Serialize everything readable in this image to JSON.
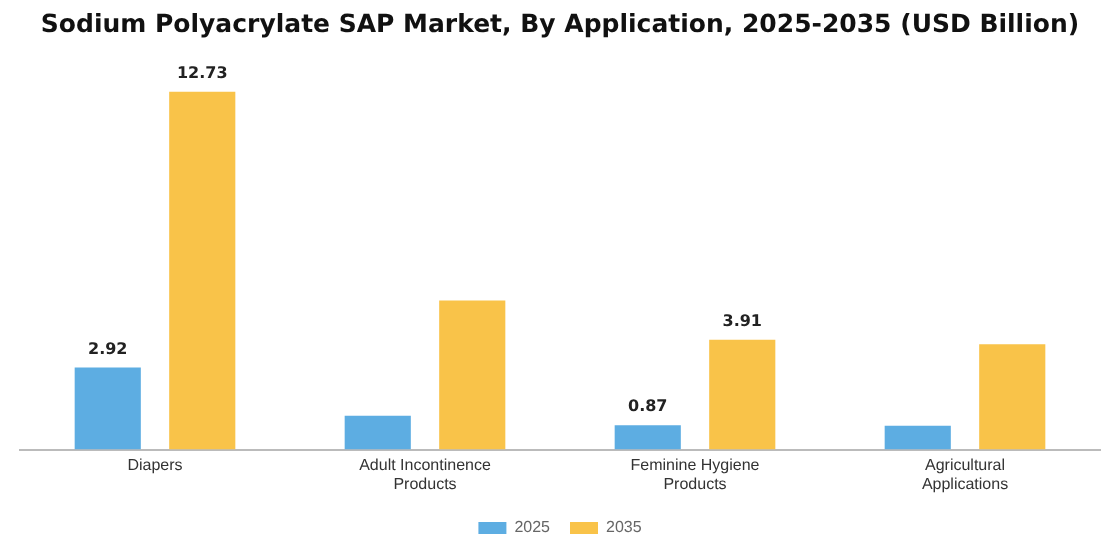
{
  "chart_data": {
    "type": "bar",
    "title": "Sodium Polyacrylate SAP Market, By Application, 2025-2035 (USD Billion)",
    "categories": [
      "Diapers",
      "Adult Incontinence Products",
      "Feminine Hygiene Products",
      "Agricultural Applications"
    ],
    "series": [
      {
        "name": "2025",
        "color": "#5dade2",
        "values": [
          2.92,
          1.2,
          0.87,
          0.85
        ],
        "value_labels": [
          "2.92",
          null,
          "0.87",
          null
        ]
      },
      {
        "name": "2035",
        "color": "#f9c349",
        "values": [
          12.73,
          5.3,
          3.91,
          3.75
        ],
        "value_labels": [
          "12.73",
          null,
          "3.91",
          null
        ]
      }
    ],
    "legend": "bottom",
    "grid": false
  }
}
